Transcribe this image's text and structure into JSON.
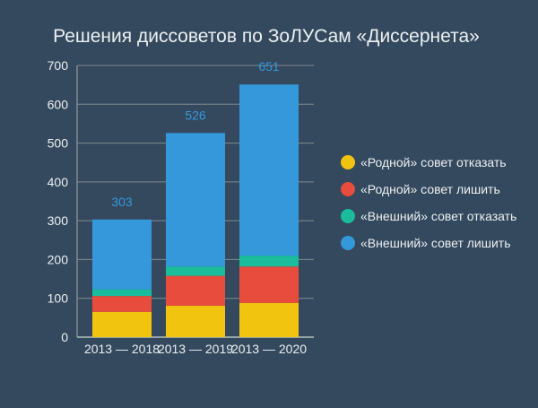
{
  "chart_data": {
    "type": "bar",
    "stacked": true,
    "title": "Решения диссоветов по ЗоЛУСам «Диссернета»",
    "categories": [
      "2013 — 2018",
      "2013 — 2019",
      "2013 — 2020"
    ],
    "series": [
      {
        "name": "«Родной» совет отказать",
        "color": "#f1c40f",
        "values": [
          65,
          81,
          88
        ]
      },
      {
        "name": "«Родной» совет лишить",
        "color": "#e74c3c",
        "values": [
          41,
          77,
          94
        ]
      },
      {
        "name": "«Внешний» совет отказать",
        "color": "#1abc9c",
        "values": [
          17,
          24,
          28
        ]
      },
      {
        "name": "«Внешний» совет лишить",
        "color": "#3498db",
        "values": [
          180,
          344,
          441
        ]
      }
    ],
    "totals": [
      303,
      526,
      651
    ],
    "ylim": [
      0,
      700
    ],
    "yticks": [
      0,
      100,
      200,
      300,
      400,
      500,
      600,
      700
    ],
    "grid": true,
    "legend": "right",
    "colors": {
      "background": "#34495e",
      "text": "#ecf0f1",
      "total_label": "#3498db",
      "grid": "#7f8c8d"
    }
  }
}
